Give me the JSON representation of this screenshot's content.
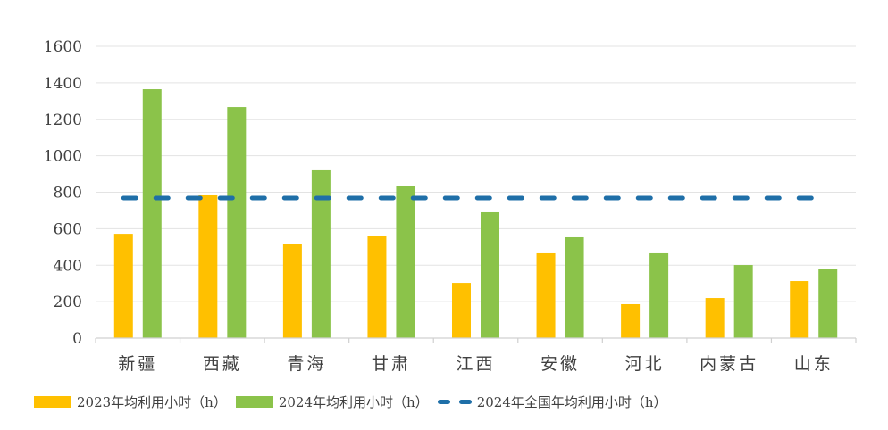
{
  "chart_data": {
    "type": "bar",
    "title": "",
    "xlabel": "",
    "ylabel": "",
    "ylim": [
      0,
      1600
    ],
    "yticks": [
      0,
      200,
      400,
      600,
      800,
      1000,
      1200,
      1400,
      1600
    ],
    "grid": true,
    "legend_position": "bottom",
    "categories": [
      "新疆",
      "西藏",
      "青海",
      "甘肃",
      "江西",
      "安徽",
      "河北",
      "内蒙古",
      "山东"
    ],
    "series": [
      {
        "name": "2023年均利用小时（h）",
        "type": "bar",
        "color": "#FFC000",
        "values": [
          572,
          783,
          514,
          558,
          303,
          465,
          186,
          220,
          313
        ]
      },
      {
        "name": "2024年均利用小时（h）",
        "type": "bar",
        "color": "#8BC34A",
        "values": [
          1365,
          1267,
          925,
          832,
          690,
          553,
          465,
          401,
          377
        ]
      },
      {
        "name": "2024年全国年均利用小时（h）",
        "type": "line",
        "style": "dashed",
        "color": "#1F6FA8",
        "values": [
          768,
          768,
          768,
          768,
          768,
          768,
          768,
          768,
          768
        ]
      }
    ]
  },
  "legend": {
    "items": [
      {
        "label": "2023年均利用小时（h）",
        "color": "#FFC000"
      },
      {
        "label": "2024年均利用小时（h）",
        "color": "#8BC34A"
      },
      {
        "label": "2024年全国年均利用小时（h）",
        "color": "#1F6FA8"
      }
    ]
  }
}
